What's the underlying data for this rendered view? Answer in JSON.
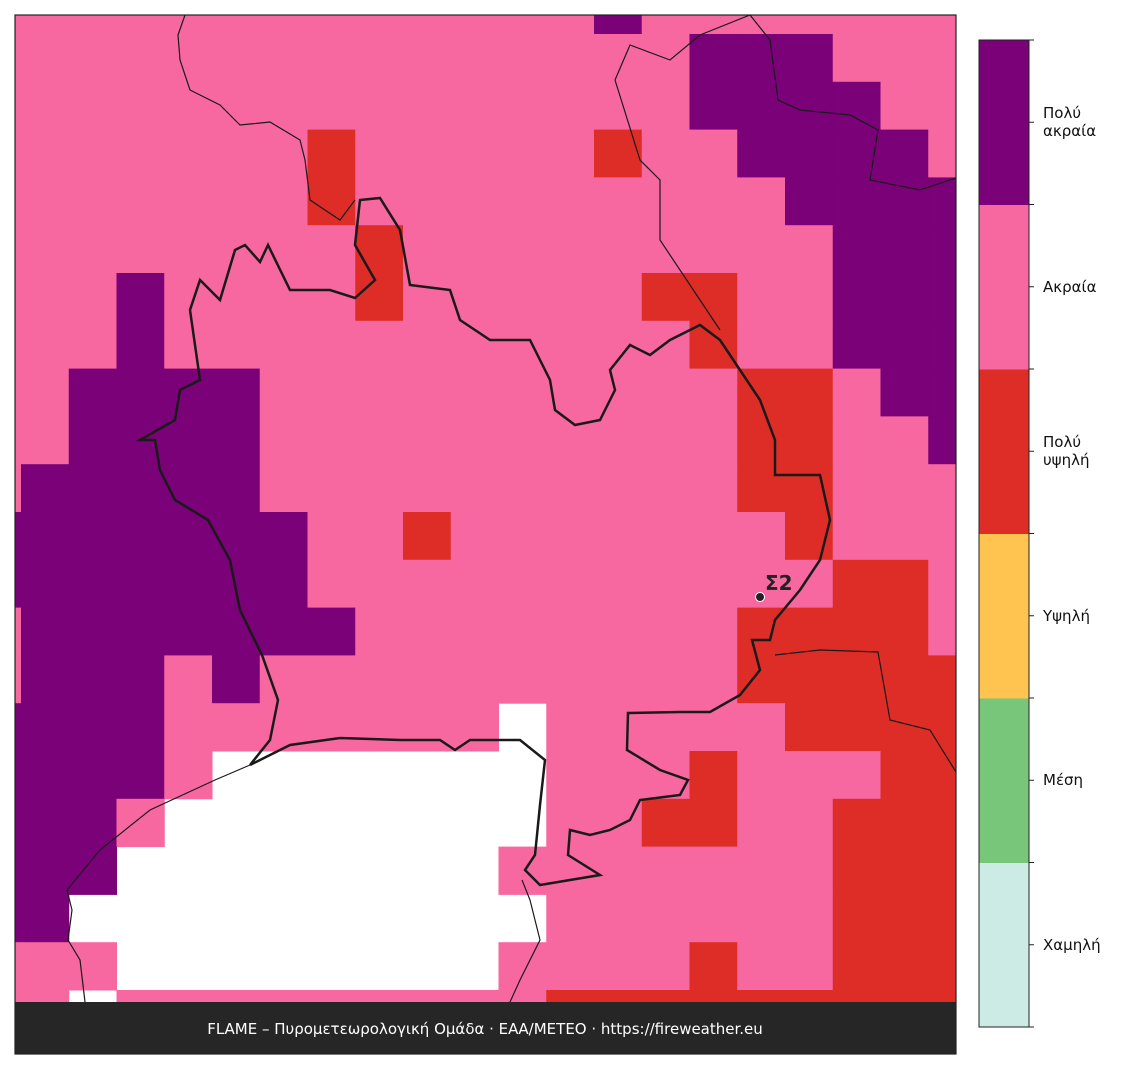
{
  "map": {
    "grid": [
      [
        4,
        4,
        4,
        4,
        4,
        4,
        4,
        4,
        4,
        4,
        4,
        4,
        4,
        5,
        4,
        4,
        4,
        4,
        4,
        4,
        4
      ],
      [
        4,
        4,
        4,
        4,
        4,
        4,
        4,
        4,
        4,
        4,
        4,
        4,
        4,
        4,
        4,
        5,
        5,
        5,
        4,
        4,
        4
      ],
      [
        4,
        4,
        4,
        4,
        4,
        4,
        4,
        4,
        4,
        4,
        4,
        4,
        4,
        4,
        4,
        5,
        5,
        5,
        5,
        4,
        4
      ],
      [
        4,
        4,
        4,
        4,
        4,
        4,
        4,
        3,
        4,
        4,
        4,
        4,
        4,
        3,
        4,
        4,
        5,
        5,
        5,
        5,
        4
      ],
      [
        4,
        4,
        4,
        4,
        4,
        4,
        4,
        3,
        4,
        4,
        4,
        4,
        4,
        4,
        4,
        4,
        4,
        5,
        5,
        5,
        5
      ],
      [
        4,
        4,
        4,
        4,
        4,
        4,
        4,
        4,
        3,
        4,
        4,
        4,
        4,
        4,
        4,
        4,
        4,
        4,
        5,
        5,
        5
      ],
      [
        4,
        4,
        4,
        5,
        4,
        4,
        4,
        4,
        3,
        4,
        4,
        4,
        4,
        4,
        3,
        3,
        4,
        4,
        5,
        5,
        5
      ],
      [
        4,
        4,
        4,
        5,
        4,
        4,
        4,
        4,
        4,
        4,
        4,
        4,
        4,
        4,
        4,
        3,
        4,
        4,
        5,
        5,
        5
      ],
      [
        4,
        4,
        5,
        5,
        5,
        5,
        4,
        4,
        4,
        4,
        4,
        4,
        4,
        4,
        4,
        4,
        3,
        3,
        4,
        5,
        5
      ],
      [
        4,
        4,
        5,
        5,
        5,
        5,
        4,
        4,
        4,
        4,
        4,
        4,
        4,
        4,
        4,
        4,
        3,
        3,
        4,
        4,
        5
      ],
      [
        4,
        5,
        5,
        5,
        5,
        5,
        4,
        4,
        4,
        4,
        4,
        4,
        4,
        4,
        4,
        4,
        3,
        3,
        4,
        4,
        4
      ],
      [
        5,
        5,
        5,
        5,
        5,
        5,
        5,
        4,
        4,
        3,
        4,
        4,
        4,
        4,
        4,
        4,
        4,
        3,
        4,
        4,
        4
      ],
      [
        5,
        5,
        5,
        5,
        5,
        5,
        5,
        4,
        4,
        4,
        4,
        4,
        4,
        4,
        4,
        4,
        4,
        4,
        3,
        3,
        4
      ],
      [
        4,
        5,
        5,
        5,
        5,
        5,
        5,
        5,
        4,
        4,
        4,
        4,
        4,
        4,
        4,
        4,
        3,
        3,
        3,
        3,
        4
      ],
      [
        4,
        5,
        5,
        5,
        4,
        5,
        4,
        4,
        4,
        4,
        4,
        4,
        4,
        4,
        4,
        4,
        3,
        3,
        3,
        3,
        3
      ],
      [
        5,
        5,
        5,
        5,
        4,
        4,
        4,
        4,
        4,
        4,
        4,
        null,
        4,
        4,
        4,
        4,
        4,
        3,
        3,
        3,
        3
      ],
      [
        5,
        5,
        5,
        5,
        4,
        null,
        null,
        null,
        null,
        null,
        null,
        null,
        4,
        4,
        4,
        3,
        4,
        4,
        4,
        3,
        3
      ],
      [
        5,
        5,
        5,
        4,
        null,
        null,
        null,
        null,
        null,
        null,
        null,
        null,
        4,
        4,
        3,
        3,
        4,
        4,
        3,
        3,
        3
      ],
      [
        5,
        5,
        5,
        null,
        null,
        null,
        null,
        null,
        null,
        null,
        null,
        4,
        4,
        4,
        4,
        4,
        4,
        4,
        3,
        3,
        3
      ],
      [
        5,
        5,
        null,
        null,
        null,
        null,
        null,
        null,
        null,
        null,
        null,
        null,
        4,
        4,
        4,
        4,
        4,
        4,
        3,
        3,
        3
      ],
      [
        4,
        4,
        4,
        null,
        null,
        null,
        null,
        null,
        null,
        null,
        null,
        4,
        4,
        4,
        4,
        3,
        4,
        4,
        3,
        3,
        3
      ],
      [
        4,
        4,
        null,
        4,
        4,
        4,
        4,
        4,
        4,
        4,
        4,
        4,
        3,
        3,
        3,
        3,
        3,
        3,
        3,
        3,
        3
      ]
    ],
    "legend": [
      {
        "label": "Χαμηλή",
        "color": "#ccebe4"
      },
      {
        "label": "Μέση",
        "color": "#78c679"
      },
      {
        "label": "Υψηλή",
        "color": "#fec44f"
      },
      {
        "label": "Πολύ υψηλή",
        "color": "#de2d26"
      },
      {
        "label": "Ακραία",
        "color": "#f768a1"
      },
      {
        "label": "Πολύ ακραία",
        "color": "#7a0177"
      }
    ],
    "station": "Σ2",
    "footer": "FLAME – Πυρομετεωρολογική Ομάδα · ΕΑΑ/METEO · https://fireweather.eu"
  }
}
